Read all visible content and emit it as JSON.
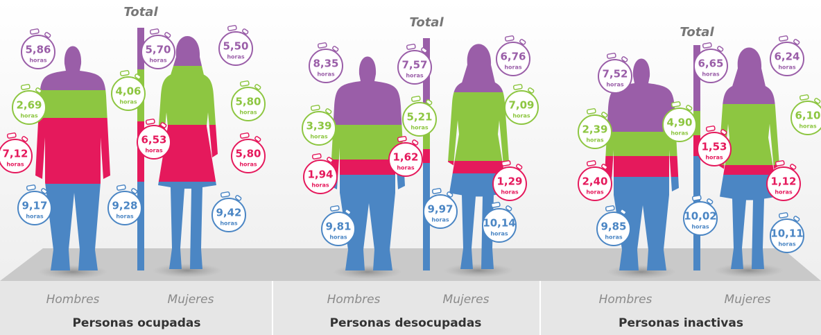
{
  "unit": "horas",
  "panels": [
    {
      "title": "Personas ocupadas",
      "men_label": "Hombres",
      "women_label": "Mujeres",
      "total_label": "Total",
      "men": [
        "5,86",
        "2,69",
        "7,12",
        "9,17"
      ],
      "total": [
        "5,70",
        "4,06",
        "6,53",
        "9,28"
      ],
      "women": [
        "5,50",
        "5,80",
        "5,80",
        "9,42"
      ]
    },
    {
      "title": "Personas desocupadas",
      "men_label": "Hombres",
      "women_label": "Mujeres",
      "total_label": "Total",
      "men": [
        "8,35",
        "3,39",
        "1,94",
        "9,81"
      ],
      "total": [
        "7,57",
        "5,21",
        "1,62",
        "9,97"
      ],
      "women": [
        "6,76",
        "7,09",
        "1,29",
        "10,14"
      ]
    },
    {
      "title": "Personas inactivas",
      "men_label": "Hombres",
      "women_label": "Mujeres",
      "total_label": "Total",
      "men": [
        "7,52",
        "2,39",
        "2,40",
        "9,85"
      ],
      "total": [
        "6,65",
        "4,90",
        "1,53",
        "10,02"
      ],
      "women": [
        "6,24",
        "6,10",
        "1,12",
        "10,11"
      ]
    }
  ]
}
